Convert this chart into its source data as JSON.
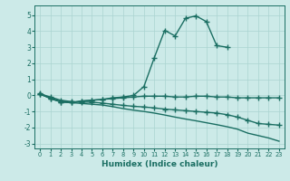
{
  "xlabel": "Humidex (Indice chaleur)",
  "bg_color": "#cceae8",
  "grid_color": "#aad4d0",
  "line_color": "#1a6e62",
  "xlim": [
    -0.5,
    23.5
  ],
  "ylim": [
    -3.3,
    5.6
  ],
  "yticks": [
    -3,
    -2,
    -1,
    0,
    1,
    2,
    3,
    4,
    5
  ],
  "xticks": [
    0,
    1,
    2,
    3,
    4,
    5,
    6,
    7,
    8,
    9,
    10,
    11,
    12,
    13,
    14,
    15,
    16,
    17,
    18,
    19,
    20,
    21,
    22,
    23
  ],
  "series": [
    {
      "x": [
        0,
        1,
        2,
        3,
        4,
        5,
        6,
        7,
        8,
        9,
        10,
        11,
        12,
        13,
        14,
        15,
        16,
        17,
        18
      ],
      "y": [
        0.15,
        -0.2,
        -0.4,
        -0.45,
        -0.35,
        -0.3,
        -0.25,
        -0.15,
        -0.1,
        0.0,
        0.55,
        2.35,
        4.05,
        3.7,
        4.8,
        4.95,
        4.6,
        3.1,
        3.0
      ],
      "marker": "+",
      "markersize": 4.0,
      "linewidth": 1.0
    },
    {
      "x": [
        0,
        1,
        2,
        3,
        4,
        5,
        6,
        7,
        8,
        9,
        10,
        11,
        12,
        13,
        14,
        15,
        16,
        17,
        18,
        19,
        20,
        21,
        22,
        23
      ],
      "y": [
        0.1,
        -0.2,
        -0.4,
        -0.45,
        -0.35,
        -0.3,
        -0.25,
        -0.2,
        -0.15,
        -0.1,
        -0.05,
        -0.05,
        -0.05,
        -0.1,
        -0.1,
        -0.05,
        -0.05,
        -0.1,
        -0.1,
        -0.15,
        -0.15,
        -0.15,
        -0.15,
        -0.15
      ],
      "marker": "+",
      "markersize": 4.0,
      "linewidth": 1.0
    },
    {
      "x": [
        0,
        1,
        2,
        3,
        4,
        5,
        6,
        7,
        8,
        9,
        10,
        11,
        12,
        13,
        14,
        15,
        16,
        17,
        18,
        19,
        20,
        21,
        22,
        23
      ],
      "y": [
        0.1,
        -0.1,
        -0.3,
        -0.38,
        -0.42,
        -0.42,
        -0.48,
        -0.55,
        -0.62,
        -0.68,
        -0.72,
        -0.78,
        -0.85,
        -0.9,
        -0.95,
        -1.0,
        -1.05,
        -1.1,
        -1.2,
        -1.35,
        -1.55,
        -1.75,
        -1.8,
        -1.85
      ],
      "marker": "+",
      "markersize": 4.0,
      "linewidth": 1.0
    },
    {
      "x": [
        0,
        1,
        2,
        3,
        4,
        5,
        6,
        7,
        8,
        9,
        10,
        11,
        12,
        13,
        14,
        15,
        16,
        17,
        18,
        19,
        20,
        21,
        22,
        23
      ],
      "y": [
        0.05,
        -0.15,
        -0.38,
        -0.45,
        -0.5,
        -0.55,
        -0.6,
        -0.7,
        -0.82,
        -0.92,
        -1.0,
        -1.1,
        -1.22,
        -1.35,
        -1.47,
        -1.58,
        -1.7,
        -1.82,
        -1.95,
        -2.1,
        -2.35,
        -2.5,
        -2.65,
        -2.85
      ],
      "marker": null,
      "markersize": 0,
      "linewidth": 1.0
    }
  ]
}
